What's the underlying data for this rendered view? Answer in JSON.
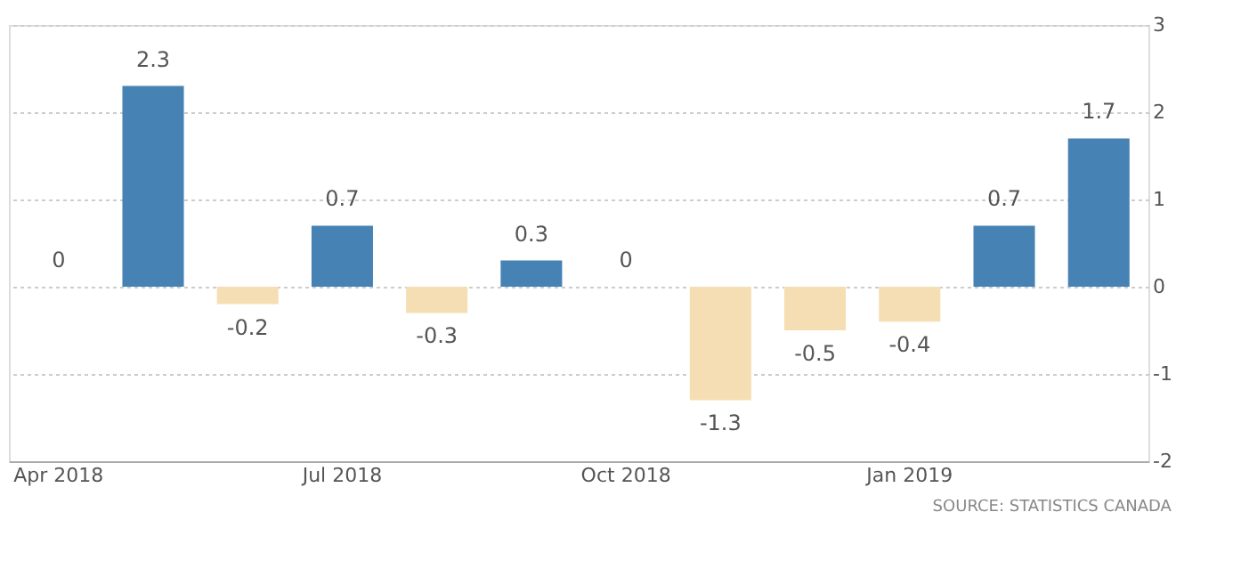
{
  "chart_data": {
    "type": "bar",
    "categories": [
      "Apr 2018",
      null,
      null,
      "Jul 2018",
      null,
      null,
      "Oct 2018",
      null,
      null,
      "Jan 2019",
      null,
      null
    ],
    "values": [
      0,
      2.3,
      -0.2,
      0.7,
      -0.3,
      0.3,
      0,
      -1.3,
      -0.5,
      -0.4,
      0.7,
      1.7
    ],
    "colors": [
      "#4682b4",
      "#4682b4",
      "#f5deb3",
      "#4682b4",
      "#f5deb3",
      "#4682b4",
      "#4682b4",
      "#f5deb3",
      "#f5deb3",
      "#f5deb3",
      "#4682b4",
      "#4682b4"
    ],
    "ylim": [
      -2,
      3
    ],
    "yticks": [
      -2,
      -1,
      0,
      1,
      2,
      3
    ],
    "grid": "y",
    "data_labels": true,
    "annotations": [
      "SOURCE: STATISTICS CANADA"
    ]
  }
}
